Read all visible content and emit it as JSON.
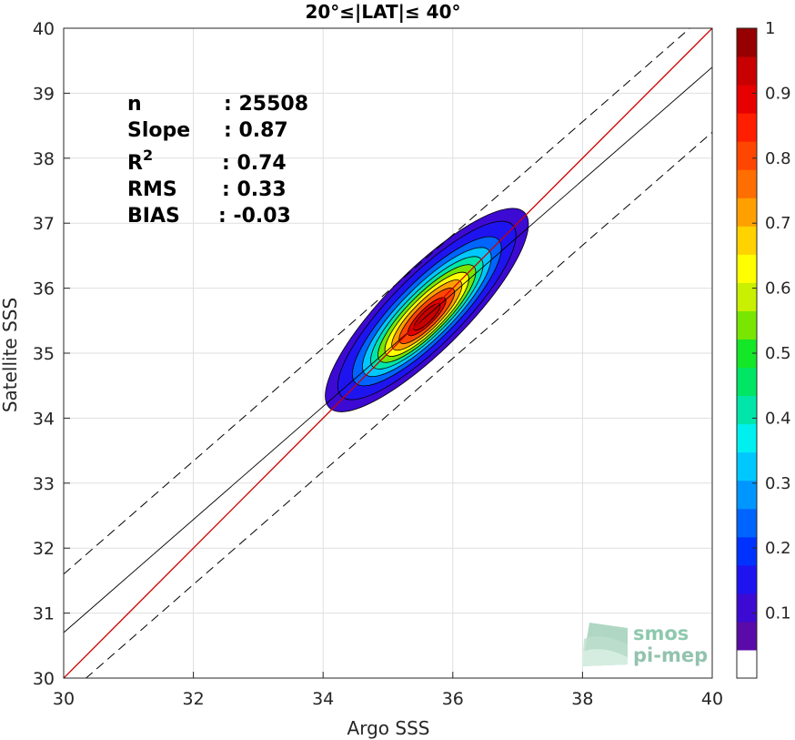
{
  "chart_data": {
    "type": "scatter",
    "title": "20°≤|LAT|≤ 40°",
    "xlabel": "Argo SSS",
    "ylabel": "Satellite SSS",
    "xlim": [
      30,
      40
    ],
    "ylim": [
      30,
      40
    ],
    "xticks": [
      "30",
      "32",
      "34",
      "36",
      "38",
      "40"
    ],
    "yticks": [
      "30",
      "31",
      "32",
      "33",
      "34",
      "35",
      "36",
      "37",
      "38",
      "39",
      "40"
    ],
    "grid": true,
    "stats": {
      "n_label": "n",
      "n_value": ": 25508",
      "slope_label": "Slope",
      "slope_value": ": 0.87",
      "r2_label": "R",
      "r2_sup": "2",
      "r2_value": ": 0.74",
      "rms_label": "RMS",
      "rms_value": ": 0.33",
      "bias_label": "BIAS",
      "bias_value": ": -0.03"
    },
    "lines": {
      "identity": {
        "slope": 1.0,
        "intercept": 0.0,
        "color": "#cc0000"
      },
      "regression": {
        "slope": 0.87,
        "intercept": 4.6,
        "color": "#000000"
      },
      "envelope_upper": {
        "slope": 0.87,
        "intercept": 5.5,
        "style": "dashed"
      },
      "envelope_lower": {
        "slope": 0.87,
        "intercept": 3.6,
        "style": "dashed"
      }
    },
    "density": {
      "center": [
        35.6,
        35.55
      ],
      "levels": [
        0.05,
        0.1,
        0.2,
        0.3,
        0.4,
        0.5,
        0.6,
        0.7,
        0.8,
        0.9,
        0.95
      ]
    },
    "colorbar": {
      "min": 0,
      "max": 1,
      "ticks": [
        "0.1",
        "0.2",
        "0.3",
        "0.4",
        "0.5",
        "0.6",
        "0.7",
        "0.8",
        "0.9",
        "1"
      ],
      "colors": [
        "#ffffff",
        "#5a0aa8",
        "#3c0ad2",
        "#1e14f0",
        "#0032ff",
        "#0064ff",
        "#0096ff",
        "#00c8ff",
        "#00f0f0",
        "#00e6aa",
        "#00e664",
        "#14e628",
        "#78e600",
        "#c8f000",
        "#ffff00",
        "#ffd200",
        "#ffa000",
        "#ff6e00",
        "#ff4600",
        "#ff1e00",
        "#e60000",
        "#c80000",
        "#960000"
      ]
    }
  },
  "logo": {
    "line1": "smos",
    "line2": "pi-mep"
  }
}
